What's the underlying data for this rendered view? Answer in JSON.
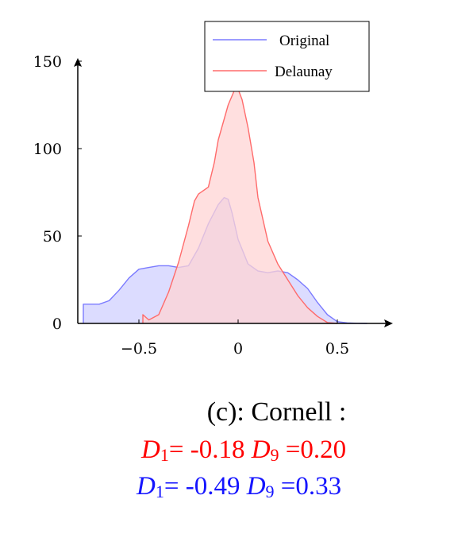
{
  "chart_data": {
    "type": "area",
    "title": "",
    "xlabel": "",
    "ylabel": "",
    "xlim": [
      -0.8,
      0.78
    ],
    "ylim": [
      0,
      150
    ],
    "xticks": [
      -0.5,
      0,
      0.5
    ],
    "xtick_labels": [
      "−0.5",
      "0",
      "0.5"
    ],
    "yticks": [
      0,
      50,
      100,
      150
    ],
    "ytick_labels": [
      "0",
      "50",
      "100",
      "150"
    ],
    "grid": false,
    "legend": "top-right",
    "series": [
      {
        "name": "Original",
        "color": "#7b7bff",
        "fill": "#dcdcff",
        "x": [
          -0.78,
          -0.78,
          -0.7,
          -0.65,
          -0.6,
          -0.55,
          -0.5,
          -0.45,
          -0.4,
          -0.35,
          -0.3,
          -0.25,
          -0.2,
          -0.15,
          -0.1,
          -0.07,
          -0.05,
          -0.03,
          0.0,
          0.05,
          0.1,
          0.15,
          0.2,
          0.25,
          0.3,
          0.35,
          0.4,
          0.45,
          0.5,
          0.55,
          0.6,
          0.65
        ],
        "y": [
          0,
          11,
          11,
          13,
          19,
          26,
          31,
          32,
          33,
          33,
          32,
          33,
          43,
          57,
          68,
          72,
          71,
          63,
          48,
          34,
          30,
          29,
          30,
          29,
          25,
          20,
          12,
          5,
          1,
          0.3,
          0.1,
          0
        ]
      },
      {
        "name": "Delaunay",
        "color": "#ff6b6b",
        "fill": "#ffd4d4",
        "x": [
          -0.48,
          -0.48,
          -0.45,
          -0.4,
          -0.35,
          -0.3,
          -0.25,
          -0.22,
          -0.2,
          -0.15,
          -0.12,
          -0.1,
          -0.05,
          -0.02,
          0.0,
          0.02,
          0.05,
          0.08,
          0.1,
          0.15,
          0.2,
          0.25,
          0.3,
          0.35,
          0.4,
          0.45,
          0.5
        ],
        "y": [
          0,
          5,
          2,
          5,
          18,
          35,
          56,
          70,
          74,
          78,
          92,
          105,
          125,
          133,
          134,
          128,
          112,
          92,
          72,
          47,
          34,
          25,
          16,
          9,
          4,
          0.5,
          0
        ]
      }
    ]
  },
  "caption": {
    "title": "(c): Cornell :",
    "red_line": {
      "d1_symbol": "D",
      "d1_sub": "1",
      "d1_value": "= -0.18",
      "d9_symbol": "D",
      "d9_sub": "9",
      "d9_value": "=0.20",
      "color": "#ff0000"
    },
    "blue_line": {
      "d1_symbol": "D",
      "d1_sub": "1",
      "d1_value": "= -0.49",
      "d9_symbol": "D",
      "d9_sub": "9",
      "d9_value": "=0.33",
      "color": "#1515ff"
    }
  }
}
